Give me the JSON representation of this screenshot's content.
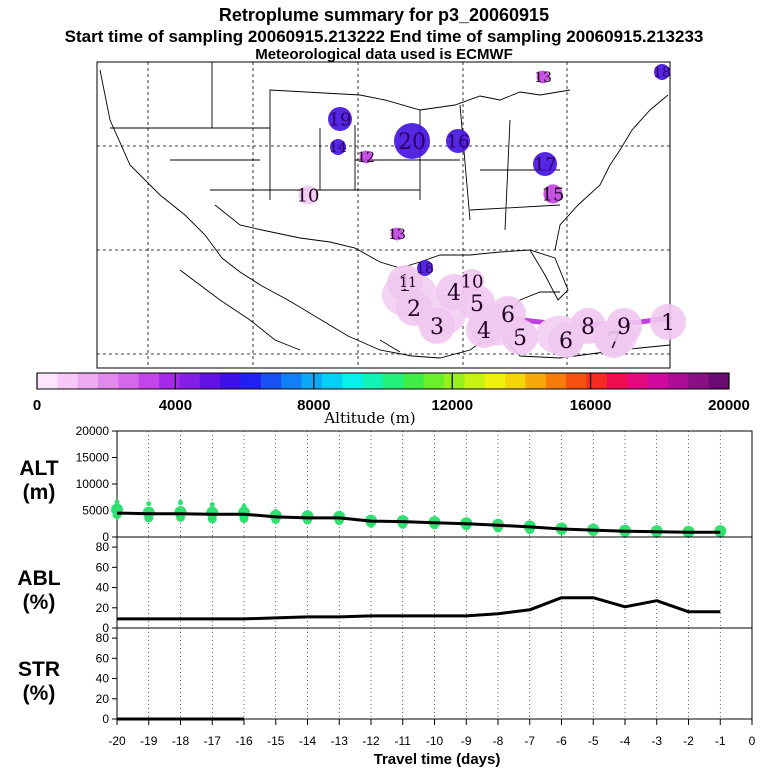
{
  "header": {
    "title": "Retroplume summary for p3_20060915",
    "sampling": "Start time of sampling 20060915.213222     End time of sampling 20060915.213233",
    "met": "Meteorological data used is ECMWF"
  },
  "colors": {
    "low": "#f0c8f0",
    "mid": "#c040e0",
    "high": "#4010e0",
    "green": "#30e070",
    "curtain": "#c040e0"
  },
  "colorbar": {
    "ticks": [
      "0",
      "4000",
      "8000",
      "12000",
      "16000",
      "20000"
    ],
    "label": "Altitude (m)"
  },
  "map_markers": [
    {
      "label": "1",
      "size": "large",
      "color": "low"
    },
    {
      "label": "2",
      "size": "large",
      "color": "low"
    },
    {
      "label": "3",
      "size": "large",
      "color": "low"
    },
    {
      "label": "4",
      "size": "large",
      "color": "low"
    },
    {
      "label": "5",
      "size": "large",
      "color": "low"
    },
    {
      "label": "6",
      "size": "large",
      "color": "low"
    },
    {
      "label": "7",
      "size": "large",
      "color": "low"
    },
    {
      "label": "8",
      "size": "large",
      "color": "low"
    },
    {
      "label": "9",
      "size": "large",
      "color": "low"
    },
    {
      "label": "10",
      "size": "medium",
      "color": "low"
    },
    {
      "label": "11",
      "size": "small",
      "color": "low"
    },
    {
      "label": "12",
      "size": "small",
      "color": "mid"
    },
    {
      "label": "13",
      "size": "small",
      "color": "mid"
    },
    {
      "label": "14",
      "size": "small",
      "color": "high"
    },
    {
      "label": "15",
      "size": "medium",
      "color": "mid"
    },
    {
      "label": "16",
      "size": "medium",
      "color": "high"
    },
    {
      "label": "17",
      "size": "medium",
      "color": "high"
    },
    {
      "label": "18",
      "size": "small",
      "color": "high"
    },
    {
      "label": "19",
      "size": "medium",
      "color": "high"
    },
    {
      "label": "20",
      "size": "large",
      "color": "high"
    }
  ],
  "chart_data": [
    {
      "type": "line",
      "id": "alt",
      "ylabel": "ALT (m)",
      "ylim": [
        0,
        20000
      ],
      "yticks": [
        "0",
        "5000",
        "10000",
        "15000",
        "20000"
      ],
      "x": [
        -20,
        -19,
        -18,
        -17,
        -16,
        -15,
        -14,
        -13,
        -12,
        -11,
        -10,
        -9,
        -8,
        -7,
        -6,
        -5,
        -4,
        -3,
        -2,
        -1
      ],
      "values": [
        4500,
        4400,
        4400,
        4300,
        4300,
        3800,
        3600,
        3600,
        3000,
        2900,
        2700,
        2500,
        2200,
        1900,
        1500,
        1300,
        1100,
        1000,
        900,
        900
      ],
      "spread": [
        {
          "x": -20,
          "y": [
            4200,
            5200,
            6600
          ]
        },
        {
          "x": -19,
          "y": [
            3600,
            4600,
            6300
          ]
        },
        {
          "x": -18,
          "y": [
            3700,
            4700,
            6500
          ]
        },
        {
          "x": -17,
          "y": [
            3400,
            4600,
            6100
          ]
        },
        {
          "x": -16,
          "y": [
            3500,
            4600,
            5800
          ]
        },
        {
          "x": -15,
          "y": [
            3300,
            4000,
            4800
          ]
        },
        {
          "x": -14,
          "y": [
            3200,
            3900,
            4600
          ]
        },
        {
          "x": -13,
          "y": [
            3100,
            3800,
            4500
          ]
        },
        {
          "x": -12,
          "y": [
            2600,
            3100,
            3700
          ]
        },
        {
          "x": -11,
          "y": [
            2400,
            3000,
            3500
          ]
        },
        {
          "x": -10,
          "y": [
            2300,
            2800,
            3200
          ]
        },
        {
          "x": -9,
          "y": [
            2100,
            2600,
            3000
          ]
        },
        {
          "x": -8,
          "y": [
            1700,
            2300,
            2800
          ]
        },
        {
          "x": -7,
          "y": [
            1400,
            2000,
            2500
          ]
        },
        {
          "x": -6,
          "y": [
            1200,
            1600,
            2000
          ]
        },
        {
          "x": -5,
          "y": [
            1000,
            1400,
            1800
          ]
        },
        {
          "x": -4,
          "y": [
            900,
            1200,
            1600
          ]
        },
        {
          "x": -3,
          "y": [
            800,
            1100,
            1500
          ]
        },
        {
          "x": -2,
          "y": [
            800,
            1000,
            1400
          ]
        },
        {
          "x": -1,
          "y": [
            800,
            1100,
            1500
          ]
        }
      ]
    },
    {
      "type": "line",
      "id": "abl",
      "ylabel": "ABL (%)",
      "ylim": [
        0,
        90
      ],
      "yticks": [
        "0",
        "20",
        "40",
        "60",
        "80"
      ],
      "x": [
        -20,
        -19,
        -18,
        -17,
        -16,
        -15,
        -14,
        -13,
        -12,
        -11,
        -10,
        -9,
        -8,
        -7,
        -6,
        -5,
        -4,
        -3,
        -2,
        -1
      ],
      "values": [
        9,
        9,
        9,
        9,
        9,
        10,
        11,
        11,
        12,
        12,
        12,
        12,
        14,
        18,
        30,
        30,
        21,
        27,
        16,
        16
      ]
    },
    {
      "type": "line",
      "id": "str",
      "ylabel": "STR (%)",
      "ylim": [
        0,
        90
      ],
      "yticks": [
        "0",
        "20",
        "40",
        "60",
        "80"
      ],
      "x": [
        -20,
        -19,
        -18,
        -17,
        -16
      ],
      "values": [
        0,
        0,
        0,
        0,
        0
      ]
    }
  ],
  "x_axis": {
    "ticks": [
      "-20",
      "-19",
      "-18",
      "-17",
      "-16",
      "-15",
      "-14",
      "-13",
      "-12",
      "-11",
      "-10",
      "-9",
      "-8",
      "-7",
      "-6",
      "-5",
      "-4",
      "-3",
      "-2",
      "-1",
      "0"
    ],
    "label": "Travel time (days)"
  }
}
